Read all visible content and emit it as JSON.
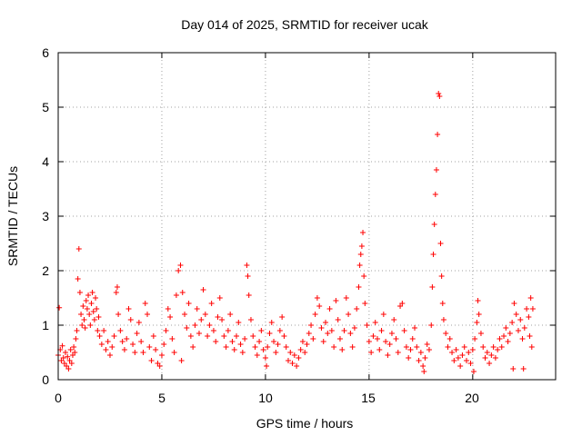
{
  "chart_data": {
    "type": "scatter",
    "title": "Day 014 of 2025, SRMTID for receiver ucak",
    "xlabel": "GPS time / hours",
    "ylabel": "SRMTID / TECUs",
    "xlim": [
      0,
      24
    ],
    "ylim": [
      0,
      6
    ],
    "x_ticks": [
      "0",
      "5",
      "10",
      "15",
      "20"
    ],
    "y_ticks": [
      "0",
      "1",
      "2",
      "3",
      "4",
      "5",
      "6"
    ],
    "grid": true,
    "marker": "+",
    "series": [
      {
        "name": "SRMTID",
        "color": "#ff0000",
        "points": [
          [
            0.0,
            0.45
          ],
          [
            0.05,
            1.32
          ],
          [
            0.1,
            0.55
          ],
          [
            0.15,
            0.35
          ],
          [
            0.2,
            0.62
          ],
          [
            0.25,
            0.4
          ],
          [
            0.3,
            0.3
          ],
          [
            0.35,
            0.5
          ],
          [
            0.4,
            0.25
          ],
          [
            0.45,
            0.42
          ],
          [
            0.5,
            0.2
          ],
          [
            0.55,
            0.35
          ],
          [
            0.6,
            0.55
          ],
          [
            0.65,
            0.3
          ],
          [
            0.7,
            0.45
          ],
          [
            0.75,
            0.6
          ],
          [
            0.8,
            0.5
          ],
          [
            0.85,
            0.75
          ],
          [
            0.9,
            0.9
          ],
          [
            0.95,
            1.85
          ],
          [
            1.0,
            2.4
          ],
          [
            1.05,
            1.6
          ],
          [
            1.1,
            1.2
          ],
          [
            1.15,
            1.0
          ],
          [
            1.2,
            1.35
          ],
          [
            1.25,
            1.1
          ],
          [
            1.3,
            0.95
          ],
          [
            1.35,
            1.45
          ],
          [
            1.4,
            1.3
          ],
          [
            1.45,
            1.55
          ],
          [
            1.5,
            1.2
          ],
          [
            1.55,
            1.0
          ],
          [
            1.6,
            1.4
          ],
          [
            1.65,
            1.6
          ],
          [
            1.7,
            1.25
          ],
          [
            1.75,
            1.1
          ],
          [
            1.8,
            1.5
          ],
          [
            1.85,
            1.3
          ],
          [
            1.9,
            0.9
          ],
          [
            1.95,
            1.15
          ],
          [
            2.0,
            0.8
          ],
          [
            2.1,
            0.65
          ],
          [
            2.2,
            0.9
          ],
          [
            2.3,
            0.55
          ],
          [
            2.4,
            0.7
          ],
          [
            2.5,
            0.45
          ],
          [
            2.6,
            0.6
          ],
          [
            2.7,
            0.8
          ],
          [
            2.8,
            1.6
          ],
          [
            2.85,
            1.7
          ],
          [
            2.9,
            1.2
          ],
          [
            3.0,
            0.9
          ],
          [
            3.1,
            0.7
          ],
          [
            3.2,
            0.55
          ],
          [
            3.3,
            0.75
          ],
          [
            3.4,
            1.3
          ],
          [
            3.5,
            1.1
          ],
          [
            3.6,
            0.65
          ],
          [
            3.7,
            0.5
          ],
          [
            3.8,
            0.85
          ],
          [
            3.9,
            1.05
          ],
          [
            4.0,
            0.7
          ],
          [
            4.1,
            0.5
          ],
          [
            4.2,
            1.4
          ],
          [
            4.3,
            1.2
          ],
          [
            4.4,
            0.6
          ],
          [
            4.5,
            0.35
          ],
          [
            4.6,
            0.8
          ],
          [
            4.7,
            0.55
          ],
          [
            4.8,
            0.3
          ],
          [
            4.9,
            0.25
          ],
          [
            5.0,
            0.45
          ],
          [
            5.1,
            0.65
          ],
          [
            5.2,
            0.9
          ],
          [
            5.3,
            1.3
          ],
          [
            5.4,
            1.15
          ],
          [
            5.5,
            0.75
          ],
          [
            5.6,
            0.5
          ],
          [
            5.7,
            1.55
          ],
          [
            5.8,
            2.0
          ],
          [
            5.9,
            2.1
          ],
          [
            6.0,
            1.6
          ],
          [
            6.1,
            1.2
          ],
          [
            6.2,
            0.95
          ],
          [
            6.3,
            1.4
          ],
          [
            6.4,
            0.8
          ],
          [
            6.5,
            0.6
          ],
          [
            6.6,
            1.0
          ],
          [
            6.7,
            1.3
          ],
          [
            6.8,
            0.85
          ],
          [
            6.9,
            1.1
          ],
          [
            7.0,
            1.65
          ],
          [
            7.1,
            1.2
          ],
          [
            7.2,
            0.8
          ],
          [
            7.3,
            1.0
          ],
          [
            7.4,
            1.4
          ],
          [
            7.5,
            0.9
          ],
          [
            7.6,
            0.7
          ],
          [
            7.7,
            1.15
          ],
          [
            7.8,
            1.5
          ],
          [
            7.9,
            1.1
          ],
          [
            8.0,
            0.8
          ],
          [
            8.1,
            0.6
          ],
          [
            8.2,
            0.9
          ],
          [
            8.3,
            1.2
          ],
          [
            8.4,
            0.7
          ],
          [
            8.5,
            0.55
          ],
          [
            8.6,
            0.8
          ],
          [
            8.7,
            1.05
          ],
          [
            8.8,
            0.65
          ],
          [
            8.9,
            0.5
          ],
          [
            9.0,
            0.75
          ],
          [
            9.1,
            2.1
          ],
          [
            9.15,
            1.9
          ],
          [
            9.2,
            1.55
          ],
          [
            9.3,
            1.1
          ],
          [
            9.4,
            0.8
          ],
          [
            9.5,
            0.6
          ],
          [
            9.6,
            0.45
          ],
          [
            9.7,
            0.7
          ],
          [
            9.8,
            0.9
          ],
          [
            9.9,
            0.55
          ],
          [
            10.0,
            0.4
          ],
          [
            10.1,
            0.6
          ],
          [
            10.2,
            0.85
          ],
          [
            10.3,
            1.05
          ],
          [
            10.4,
            0.7
          ],
          [
            10.5,
            0.5
          ],
          [
            10.6,
            0.65
          ],
          [
            10.7,
            0.9
          ],
          [
            10.8,
            1.15
          ],
          [
            10.9,
            0.8
          ],
          [
            11.0,
            0.6
          ],
          [
            11.1,
            0.35
          ],
          [
            11.2,
            0.5
          ],
          [
            11.3,
            0.3
          ],
          [
            11.4,
            0.45
          ],
          [
            11.5,
            0.25
          ],
          [
            11.6,
            0.4
          ],
          [
            11.7,
            0.55
          ],
          [
            11.8,
            0.7
          ],
          [
            11.9,
            0.5
          ],
          [
            12.0,
            0.65
          ],
          [
            12.1,
            0.85
          ],
          [
            12.2,
            1.0
          ],
          [
            12.3,
            0.75
          ],
          [
            12.4,
            1.2
          ],
          [
            12.5,
            1.5
          ],
          [
            12.6,
            1.35
          ],
          [
            12.7,
            0.95
          ],
          [
            12.8,
            0.7
          ],
          [
            12.9,
            1.05
          ],
          [
            13.0,
            0.85
          ],
          [
            13.1,
            1.3
          ],
          [
            13.2,
            0.9
          ],
          [
            13.3,
            0.6
          ],
          [
            13.4,
            1.45
          ],
          [
            13.5,
            1.1
          ],
          [
            13.6,
            0.75
          ],
          [
            13.7,
            0.55
          ],
          [
            13.8,
            0.9
          ],
          [
            13.9,
            1.5
          ],
          [
            14.0,
            1.2
          ],
          [
            14.1,
            0.85
          ],
          [
            14.2,
            0.6
          ],
          [
            14.3,
            0.95
          ],
          [
            14.4,
            1.3
          ],
          [
            14.5,
            1.7
          ],
          [
            14.55,
            2.1
          ],
          [
            14.6,
            2.3
          ],
          [
            14.65,
            2.45
          ],
          [
            14.7,
            2.7
          ],
          [
            14.75,
            1.9
          ],
          [
            14.8,
            1.4
          ],
          [
            14.9,
            1.0
          ],
          [
            15.0,
            0.7
          ],
          [
            15.1,
            0.5
          ],
          [
            15.2,
            0.8
          ],
          [
            15.3,
            1.05
          ],
          [
            15.4,
            0.75
          ],
          [
            15.5,
            0.55
          ],
          [
            15.6,
            0.9
          ],
          [
            15.7,
            1.2
          ],
          [
            15.8,
            0.7
          ],
          [
            15.9,
            0.45
          ],
          [
            16.0,
            0.65
          ],
          [
            16.1,
            0.85
          ],
          [
            16.2,
            1.1
          ],
          [
            16.3,
            0.75
          ],
          [
            16.4,
            0.5
          ],
          [
            16.5,
            1.35
          ],
          [
            16.6,
            1.4
          ],
          [
            16.7,
            0.9
          ],
          [
            16.8,
            0.6
          ],
          [
            16.9,
            0.4
          ],
          [
            17.0,
            0.55
          ],
          [
            17.1,
            0.75
          ],
          [
            17.2,
            0.95
          ],
          [
            17.3,
            0.6
          ],
          [
            17.4,
            0.35
          ],
          [
            17.5,
            0.5
          ],
          [
            17.6,
            0.25
          ],
          [
            17.7,
            0.4
          ],
          [
            17.8,
            0.65
          ],
          [
            17.9,
            0.55
          ],
          [
            18.0,
            1.0
          ],
          [
            18.05,
            1.7
          ],
          [
            18.1,
            2.3
          ],
          [
            18.15,
            2.85
          ],
          [
            18.2,
            3.4
          ],
          [
            18.25,
            3.85
          ],
          [
            18.3,
            4.5
          ],
          [
            18.35,
            5.25
          ],
          [
            18.4,
            5.2
          ],
          [
            18.45,
            2.5
          ],
          [
            18.5,
            1.9
          ],
          [
            18.55,
            1.4
          ],
          [
            18.6,
            1.1
          ],
          [
            18.7,
            0.85
          ],
          [
            18.8,
            0.6
          ],
          [
            18.9,
            0.75
          ],
          [
            19.0,
            0.5
          ],
          [
            19.1,
            0.35
          ],
          [
            19.2,
            0.55
          ],
          [
            19.3,
            0.4
          ],
          [
            19.4,
            0.25
          ],
          [
            19.5,
            0.45
          ],
          [
            19.6,
            0.6
          ],
          [
            19.7,
            0.35
          ],
          [
            19.8,
            0.5
          ],
          [
            19.9,
            0.3
          ],
          [
            20.0,
            0.55
          ],
          [
            20.1,
            0.75
          ],
          [
            20.2,
            1.05
          ],
          [
            20.25,
            1.45
          ],
          [
            20.3,
            1.2
          ],
          [
            20.4,
            0.85
          ],
          [
            20.5,
            0.6
          ],
          [
            20.6,
            0.4
          ],
          [
            20.7,
            0.5
          ],
          [
            20.8,
            0.3
          ],
          [
            20.9,
            0.45
          ],
          [
            21.0,
            0.6
          ],
          [
            21.1,
            0.4
          ],
          [
            21.2,
            0.55
          ],
          [
            21.3,
            0.75
          ],
          [
            21.4,
            0.6
          ],
          [
            21.5,
            0.8
          ],
          [
            21.6,
            0.95
          ],
          [
            21.7,
            0.7
          ],
          [
            21.8,
            0.85
          ],
          [
            21.9,
            1.05
          ],
          [
            22.0,
            1.4
          ],
          [
            22.1,
            1.2
          ],
          [
            22.2,
            0.9
          ],
          [
            22.3,
            1.1
          ],
          [
            22.4,
            0.75
          ],
          [
            22.5,
            0.95
          ],
          [
            22.6,
            1.3
          ],
          [
            22.7,
            1.15
          ],
          [
            22.75,
            0.8
          ],
          [
            22.8,
            1.5
          ],
          [
            22.85,
            0.6
          ],
          [
            22.9,
            1.3
          ],
          [
            21.95,
            0.2
          ],
          [
            22.45,
            0.2
          ],
          [
            20.05,
            0.15
          ],
          [
            17.65,
            0.15
          ],
          [
            10.05,
            0.25
          ],
          [
            5.95,
            0.35
          ]
        ]
      }
    ]
  }
}
